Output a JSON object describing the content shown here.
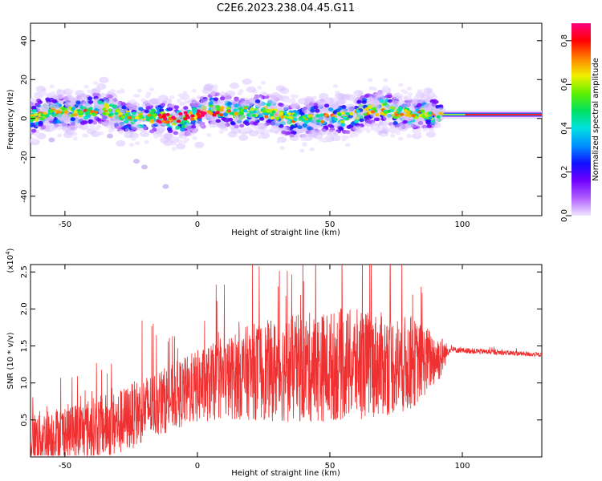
{
  "chart_data": [
    {
      "type": "heatmap",
      "title": "C2E6.2023.238.04.45.G11",
      "xlabel": "Height of straight line (km)",
      "ylabel": "Frequency (Hz)",
      "xlim": [
        -63,
        130
      ],
      "ylim": [
        -50,
        49
      ],
      "xticks": [
        -50,
        0,
        50,
        100
      ],
      "yticks": [
        -40,
        -20,
        0,
        20,
        40
      ],
      "colorbar": {
        "label": "Normalized spectral amplitude",
        "range": [
          0.0,
          0.88
        ],
        "ticks": [
          0.0,
          0.2,
          0.4,
          0.6,
          0.8
        ],
        "colormap": [
          "#f0e6ff",
          "#b060ff",
          "#7000ff",
          "#1010ff",
          "#0090ff",
          "#00e0e0",
          "#00e060",
          "#60f000",
          "#f0f000",
          "#ff8000",
          "#ff0000",
          "#ff0080"
        ]
      },
      "band": {
        "center_hz": 2,
        "half_width_hz": 6,
        "strong_until_km": 92,
        "constant_line_after_km": 92
      },
      "outliers": [
        {
          "x": -23,
          "y": -22
        },
        {
          "x": -20,
          "y": -25
        },
        {
          "x": -12,
          "y": -35
        },
        {
          "x": -33,
          "y": -9
        },
        {
          "x": -55,
          "y": -11
        }
      ],
      "grid": false
    },
    {
      "type": "line",
      "xlabel": "Height of straight line (km)",
      "ylabel": "SNR (10 * v/v)",
      "y_multiplier_label": "(x10",
      "y_multiplier_exp": "4",
      "xlim": [
        -63,
        130
      ],
      "ylim": [
        0,
        2.6
      ],
      "xticks": [
        -50,
        0,
        50,
        100
      ],
      "yticks": [
        0.5,
        1.0,
        1.5,
        2.0,
        2.5
      ],
      "series_color": "#f03030",
      "envelope": [
        {
          "x": -63,
          "mean": 0.25,
          "spread": 0.35
        },
        {
          "x": -45,
          "mean": 0.35,
          "spread": 0.4
        },
        {
          "x": -30,
          "mean": 0.45,
          "spread": 0.45
        },
        {
          "x": -20,
          "mean": 0.65,
          "spread": 0.45
        },
        {
          "x": -10,
          "mean": 0.8,
          "spread": 0.45
        },
        {
          "x": 0,
          "mean": 0.95,
          "spread": 0.5
        },
        {
          "x": 10,
          "mean": 1.05,
          "spread": 0.55
        },
        {
          "x": 20,
          "mean": 1.15,
          "spread": 0.65
        },
        {
          "x": 40,
          "mean": 1.2,
          "spread": 0.75
        },
        {
          "x": 60,
          "mean": 1.25,
          "spread": 0.75
        },
        {
          "x": 80,
          "mean": 1.25,
          "spread": 0.65
        },
        {
          "x": 92,
          "mean": 1.35,
          "spread": 0.3
        },
        {
          "x": 95,
          "mean": 1.45,
          "spread": 0.04
        },
        {
          "x": 130,
          "mean": 1.38,
          "spread": 0.03
        }
      ],
      "grid": false
    }
  ]
}
